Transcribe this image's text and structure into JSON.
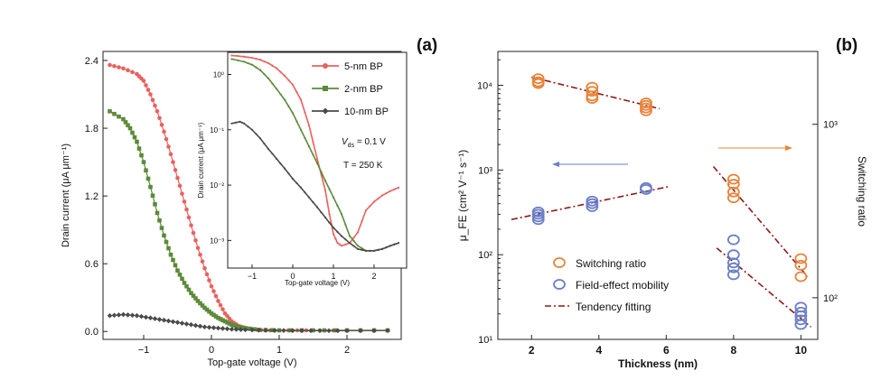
{
  "panel_labels": {
    "a": "(a)",
    "b": "(b)"
  },
  "colors": {
    "red": "#e8625e",
    "green": "#5c8a3a",
    "gray": "#4a4a4a",
    "orange": "#e8843a",
    "blue": "#6b7ec8",
    "fit": "#8b1a1a",
    "axis": "#222222"
  },
  "chart_data": [
    {
      "id": "a-main",
      "type": "line",
      "xlabel": "Top-gate voltage (V)",
      "ylabel": "Drain current (μA μm⁻¹)",
      "xlim": [
        -1.6,
        2.8
      ],
      "ylim": [
        -0.07,
        2.48
      ],
      "xticks": [
        -1,
        0,
        1,
        2
      ],
      "xticklabels": [
        "−1",
        "0",
        "1",
        "2"
      ],
      "yticks": [
        0.0,
        0.6,
        1.2,
        1.8,
        2.4
      ],
      "yticklabels": [
        "0.0",
        "0.6",
        "1.2",
        "1.8",
        "2.4"
      ],
      "series": [
        {
          "name": "5-nm BP",
          "color": "#e8625e",
          "marker": "circle",
          "x": [
            -1.5,
            -1.3,
            -1.1,
            -1.0,
            -0.9,
            -0.8,
            -0.7,
            -0.6,
            -0.5,
            -0.4,
            -0.3,
            -0.2,
            -0.1,
            0.0,
            0.1,
            0.2,
            0.3,
            0.4,
            0.5,
            0.6,
            0.8,
            1.0,
            1.4,
            2.0,
            2.6
          ],
          "y": [
            2.36,
            2.33,
            2.28,
            2.22,
            2.1,
            1.95,
            1.77,
            1.57,
            1.36,
            1.15,
            0.94,
            0.74,
            0.56,
            0.4,
            0.27,
            0.16,
            0.09,
            0.05,
            0.03,
            0.02,
            0.01,
            0.01,
            0.01,
            0.01,
            0.01
          ]
        },
        {
          "name": "2-nm BP",
          "color": "#5c8a3a",
          "marker": "square",
          "x": [
            -1.5,
            -1.3,
            -1.2,
            -1.1,
            -1.0,
            -0.9,
            -0.8,
            -0.7,
            -0.6,
            -0.5,
            -0.4,
            -0.3,
            -0.2,
            -0.1,
            0.0,
            0.1,
            0.2,
            0.3,
            0.4,
            0.5,
            0.7,
            1.0,
            1.5,
            2.0,
            2.6
          ],
          "y": [
            1.95,
            1.88,
            1.8,
            1.68,
            1.5,
            1.28,
            1.05,
            0.85,
            0.68,
            0.54,
            0.43,
            0.34,
            0.27,
            0.21,
            0.16,
            0.12,
            0.09,
            0.06,
            0.04,
            0.03,
            0.015,
            0.01,
            0.01,
            0.01,
            0.01
          ]
        },
        {
          "name": "10-nm BP",
          "color": "#4a4a4a",
          "marker": "diamond",
          "x": [
            -1.5,
            -1.3,
            -1.1,
            -0.9,
            -0.7,
            -0.5,
            -0.3,
            -0.1,
            0.1,
            0.3,
            0.5,
            0.8,
            1.2,
            1.6,
            2.0,
            2.6
          ],
          "y": [
            0.14,
            0.15,
            0.14,
            0.12,
            0.1,
            0.08,
            0.06,
            0.04,
            0.03,
            0.02,
            0.015,
            0.01,
            0.008,
            0.007,
            0.007,
            0.008
          ]
        }
      ]
    },
    {
      "id": "a-inset",
      "type": "line",
      "yscale": "log",
      "xlabel": "Top-gate voltage (V)",
      "ylabel": "Drain current (μA μm⁻¹)",
      "xlim": [
        -1.6,
        2.8
      ],
      "ylim_exp": [
        -3.5,
        0.4
      ],
      "xticks": [
        -1,
        0,
        1,
        2
      ],
      "xticklabels": [
        "−1",
        "0",
        "1",
        "2"
      ],
      "yticks_exp": [
        -3,
        -2,
        -1,
        0
      ],
      "yticklabels": [
        "10⁻³",
        "10⁻²",
        "10⁻¹",
        "10⁰"
      ],
      "annotations": {
        "vds": "V_ds = 0.1 V",
        "temp": "T = 250 K"
      },
      "legend": [
        "5-nm BP",
        "2-nm BP",
        "10-nm BP"
      ],
      "series": [
        {
          "name": "5-nm BP",
          "color": "#e8625e",
          "x": [
            -1.5,
            -1.2,
            -1.0,
            -0.8,
            -0.6,
            -0.4,
            -0.2,
            0.0,
            0.2,
            0.4,
            0.6,
            0.8,
            0.9,
            1.0,
            1.1,
            1.2,
            1.4,
            1.6,
            1.8,
            2.0,
            2.2,
            2.4,
            2.6
          ],
          "y": [
            2.2,
            2.1,
            2.0,
            1.85,
            1.6,
            1.3,
            0.95,
            0.65,
            0.35,
            0.12,
            0.03,
            0.008,
            0.003,
            0.0013,
            0.0009,
            0.0008,
            0.0009,
            0.0014,
            0.0035,
            0.005,
            0.0065,
            0.0078,
            0.009
          ]
        },
        {
          "name": "2-nm BP",
          "color": "#5c8a3a",
          "x": [
            -1.5,
            -1.2,
            -1.0,
            -0.8,
            -0.6,
            -0.4,
            -0.2,
            0.0,
            0.2,
            0.4,
            0.6,
            0.8,
            1.0,
            1.2,
            1.4,
            1.6,
            1.8,
            2.0,
            2.2,
            2.4,
            2.6
          ],
          "y": [
            1.9,
            1.7,
            1.5,
            1.2,
            0.85,
            0.55,
            0.35,
            0.2,
            0.1,
            0.05,
            0.025,
            0.012,
            0.006,
            0.003,
            0.0012,
            0.0008,
            0.00065,
            0.00065,
            0.0007,
            0.0008,
            0.0009
          ]
        },
        {
          "name": "10-nm BP",
          "color": "#4a4a4a",
          "x": [
            -1.5,
            -1.3,
            -1.2,
            -1.0,
            -0.8,
            -0.6,
            -0.4,
            -0.2,
            0.0,
            0.2,
            0.4,
            0.6,
            0.8,
            1.0,
            1.2,
            1.4,
            1.6,
            1.8,
            2.0,
            2.2,
            2.4,
            2.6
          ],
          "y": [
            0.13,
            0.14,
            0.13,
            0.1,
            0.07,
            0.045,
            0.03,
            0.02,
            0.013,
            0.009,
            0.006,
            0.004,
            0.0026,
            0.0017,
            0.0012,
            0.0009,
            0.0007,
            0.00065,
            0.00065,
            0.0007,
            0.0008,
            0.0009
          ]
        }
      ]
    },
    {
      "id": "b",
      "type": "scatter",
      "xlabel": "Thickness (nm)",
      "ylabel": "μ_FE (cm² V⁻¹ s⁻¹)",
      "ylabel_right": "Switching ratio",
      "xlim": [
        1,
        10.5
      ],
      "ylim_exp": [
        1,
        4.4
      ],
      "yright_exp": [
        1.76,
        3.42
      ],
      "xticks": [
        2,
        4,
        6,
        8,
        10
      ],
      "xticklabels": [
        "2",
        "4",
        "6",
        "8",
        "10"
      ],
      "yticks_exp": [
        1,
        2,
        3,
        4
      ],
      "yticklabels": [
        "10¹",
        "10²",
        "10³",
        "10⁴"
      ],
      "yright_ticks_exp": [
        2,
        3
      ],
      "yright_ticklabels": [
        "10²",
        "10³"
      ],
      "legend": [
        "Switching ratio",
        "Field-effect mobility",
        "Tendency fitting"
      ],
      "series": [
        {
          "name": "Switching ratio",
          "color": "#e8843a",
          "axis": "left",
          "x": [
            2.2,
            2.2,
            2.2,
            3.8,
            3.8,
            3.8,
            3.8,
            5.4,
            5.4,
            5.4,
            5.4,
            8,
            8,
            8,
            8,
            10,
            10,
            10
          ],
          "y": [
            12000,
            11000,
            10500,
            9500,
            8500,
            7500,
            7000,
            6200,
            5800,
            5400,
            5000,
            780,
            680,
            550,
            470,
            90,
            75,
            55
          ]
        },
        {
          "name": "Field-effect mobility",
          "color": "#6b7ec8",
          "axis": "left",
          "x": [
            2.2,
            2.2,
            2.2,
            2.2,
            3.8,
            3.8,
            3.8,
            5.4,
            5.4,
            8,
            8,
            8,
            8,
            8,
            10,
            10,
            10,
            10,
            10
          ],
          "y": [
            320,
            300,
            280,
            260,
            430,
            400,
            370,
            620,
            590,
            150,
            100,
            80,
            70,
            58,
            24,
            21,
            19,
            17,
            15
          ]
        }
      ],
      "fits": [
        {
          "x": [
            2.0,
            5.8
          ],
          "y": [
            12500,
            5300
          ]
        },
        {
          "x": [
            1.4,
            6.1
          ],
          "y": [
            260,
            640
          ]
        },
        {
          "x": [
            7.4,
            10.2
          ],
          "y": [
            1100,
            55
          ]
        },
        {
          "x": [
            7.5,
            10.3
          ],
          "y": [
            120,
            14
          ]
        }
      ]
    }
  ]
}
